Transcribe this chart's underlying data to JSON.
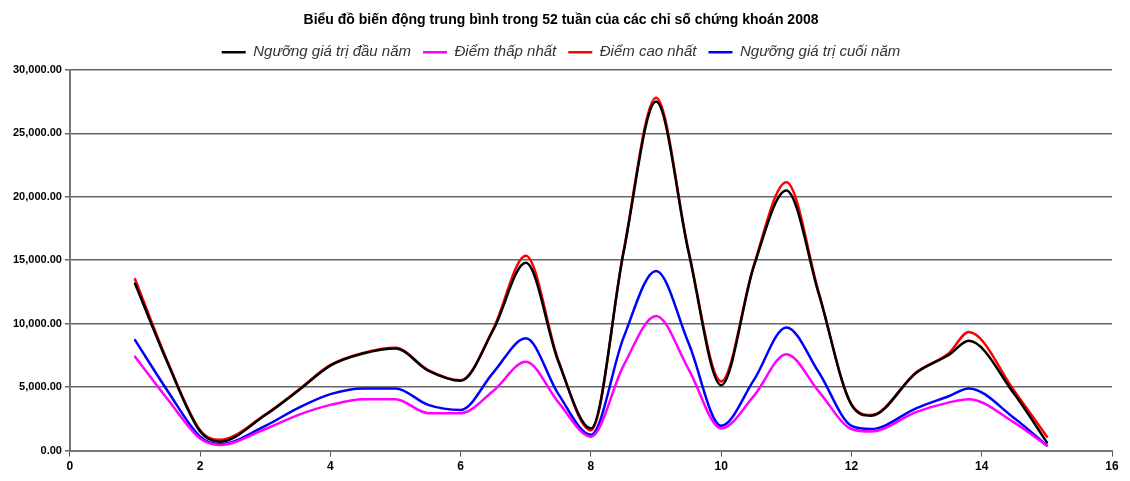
{
  "chart_data": {
    "type": "line",
    "title": "Biểu đồ biến động trung bình trong 52 tuần của các chỉ số chứng khoán 2008",
    "x": [
      1,
      1.5,
      2,
      2.3,
      3,
      3.5,
      4,
      4.5,
      5,
      5.5,
      6,
      6.5,
      7,
      7.5,
      8,
      8.5,
      9,
      9.5,
      10,
      10.5,
      11,
      11.5,
      12,
      12.3,
      13,
      13.5,
      13.8,
      14.5,
      15
    ],
    "series": [
      {
        "name": "Ngưỡng giá trị đầu năm",
        "color": "#000000",
        "values": [
          13150,
          6900,
          1500,
          700,
          2800,
          4700,
          6700,
          7650,
          8050,
          6300,
          5500,
          9500,
          14800,
          7000,
          1750,
          15600,
          27500,
          15600,
          5150,
          14500,
          20500,
          12300,
          3600,
          2750,
          6150,
          7550,
          8650,
          4450,
          650
        ]
      },
      {
        "name": "Điểm thấp nhất",
        "color": "#ff00ff",
        "values": [
          7400,
          4050,
          950,
          450,
          1700,
          2800,
          3600,
          4050,
          4050,
          2950,
          2950,
          4700,
          7000,
          3800,
          1100,
          6700,
          10600,
          6400,
          1750,
          4300,
          7600,
          4650,
          1700,
          1500,
          3050,
          3800,
          4050,
          2200,
          400
        ]
      },
      {
        "name": "Điểm cao nhất",
        "color": "#ff0000",
        "values": [
          13500,
          7000,
          1600,
          850,
          2850,
          4750,
          6750,
          7700,
          8100,
          6350,
          5550,
          9600,
          15350,
          7100,
          1600,
          15700,
          27800,
          15700,
          5450,
          14600,
          21150,
          12400,
          3650,
          2800,
          6200,
          7700,
          9350,
          4700,
          1100
        ]
      },
      {
        "name": "Ngưỡng giá trị cuối năm",
        "color": "#0000ff",
        "values": [
          8700,
          4700,
          1100,
          500,
          1950,
          3350,
          4450,
          4900,
          4900,
          3600,
          3200,
          6150,
          8850,
          4450,
          1250,
          8900,
          14150,
          8450,
          1950,
          5550,
          9700,
          6150,
          1950,
          1700,
          3350,
          4300,
          4900,
          2550,
          400
        ]
      }
    ],
    "xlim": [
      0,
      16
    ],
    "xticks": [
      0,
      2,
      4,
      6,
      8,
      10,
      12,
      14,
      16
    ],
    "ylim": [
      0,
      30000
    ],
    "yticks": [
      {
        "value": 0,
        "label": "0.00"
      },
      {
        "value": 5000,
        "label": "5,000.00"
      },
      {
        "value": 10000,
        "label": "10,000.00"
      },
      {
        "value": 15000,
        "label": "15,000.00"
      },
      {
        "value": 20000,
        "label": "20,000.00"
      },
      {
        "value": 25000,
        "label": "25,000.00"
      },
      {
        "value": 30000,
        "label": "30,000.00"
      }
    ],
    "grid": "y",
    "legend": "top",
    "marker": "none",
    "line_style": "solid"
  }
}
